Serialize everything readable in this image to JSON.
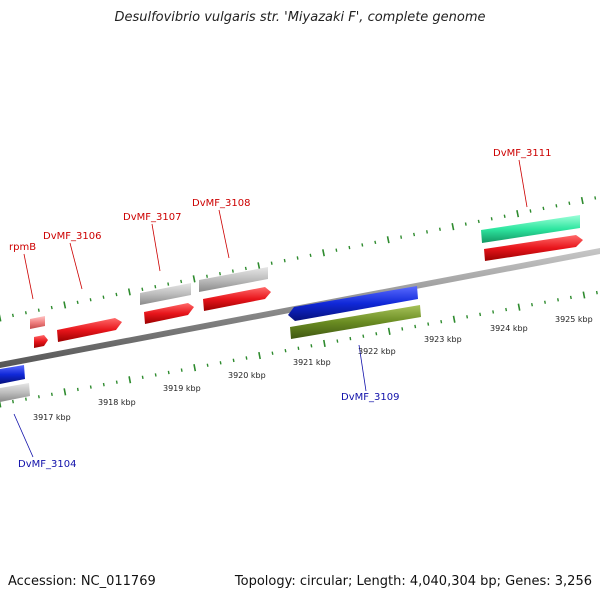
{
  "title": "Desulfovibrio vulgaris str. 'Miyazaki F', complete genome",
  "footer": {
    "accession": "Accession: NC_011769",
    "summary": "Topology: circular; Length: 4,040,304 bp; Genes: 3,256"
  },
  "colors": {
    "forward_cds": "#e8151b",
    "reverse_cds": "#1028d8",
    "pseudo_gray": "#b9b9b9",
    "trna_pink": "#f08080",
    "green": "#6a8c22",
    "teal": "#2ee6a0",
    "label_red": "#cc0000",
    "label_blue": "#1010aa",
    "tick_green": "#2e8b2e"
  },
  "scale": {
    "tick_labels": [
      "3917 kbp",
      "3918 kbp",
      "3919 kbp",
      "3920 kbp",
      "3921 kbp",
      "3922 kbp",
      "3923 kbp",
      "3924 kbp",
      "3925 kbp"
    ]
  },
  "gene_labels": [
    {
      "text": "rpmB",
      "color": "red"
    },
    {
      "text": "DvMF_3106",
      "color": "red"
    },
    {
      "text": "DvMF_3107",
      "color": "red"
    },
    {
      "text": "DvMF_3108",
      "color": "red"
    },
    {
      "text": "DvMF_3111",
      "color": "red"
    },
    {
      "text": "DvMF_3109",
      "color": "blue"
    },
    {
      "text": "DvMF_3104",
      "color": "blue"
    }
  ]
}
